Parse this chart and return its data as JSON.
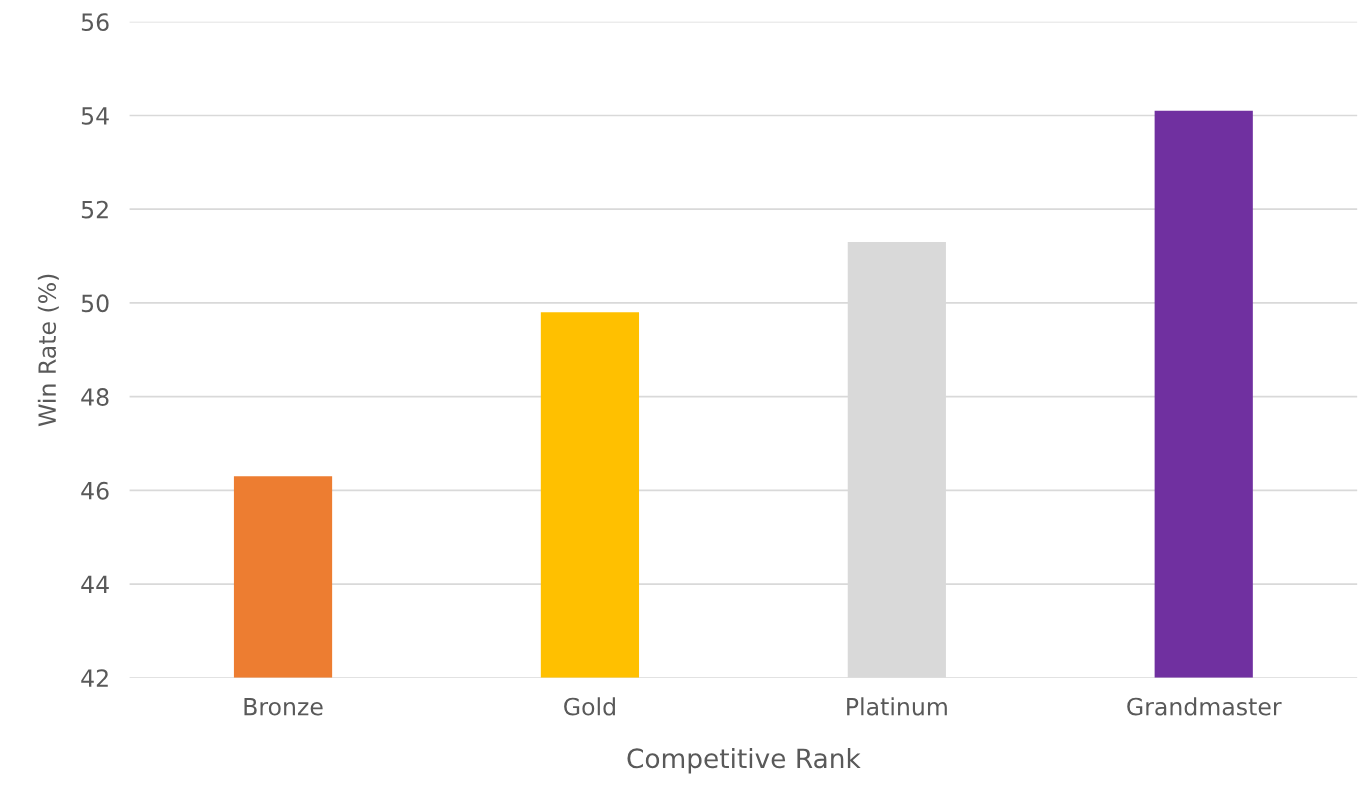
{
  "chart_data": {
    "type": "bar",
    "xlabel": "Competitive Rank",
    "ylabel": "Win Rate (%)",
    "categories": [
      "Bronze",
      "Gold",
      "Platinum",
      "Grandmaster"
    ],
    "values": [
      46.3,
      49.8,
      51.3,
      54.1
    ],
    "colors": [
      "#ed7d31",
      "#ffc000",
      "#d9d9d9",
      "#7030a0"
    ],
    "ylim": [
      42,
      56
    ],
    "yticks": [
      42,
      44,
      46,
      48,
      50,
      52,
      54,
      56
    ],
    "grid": "y"
  }
}
